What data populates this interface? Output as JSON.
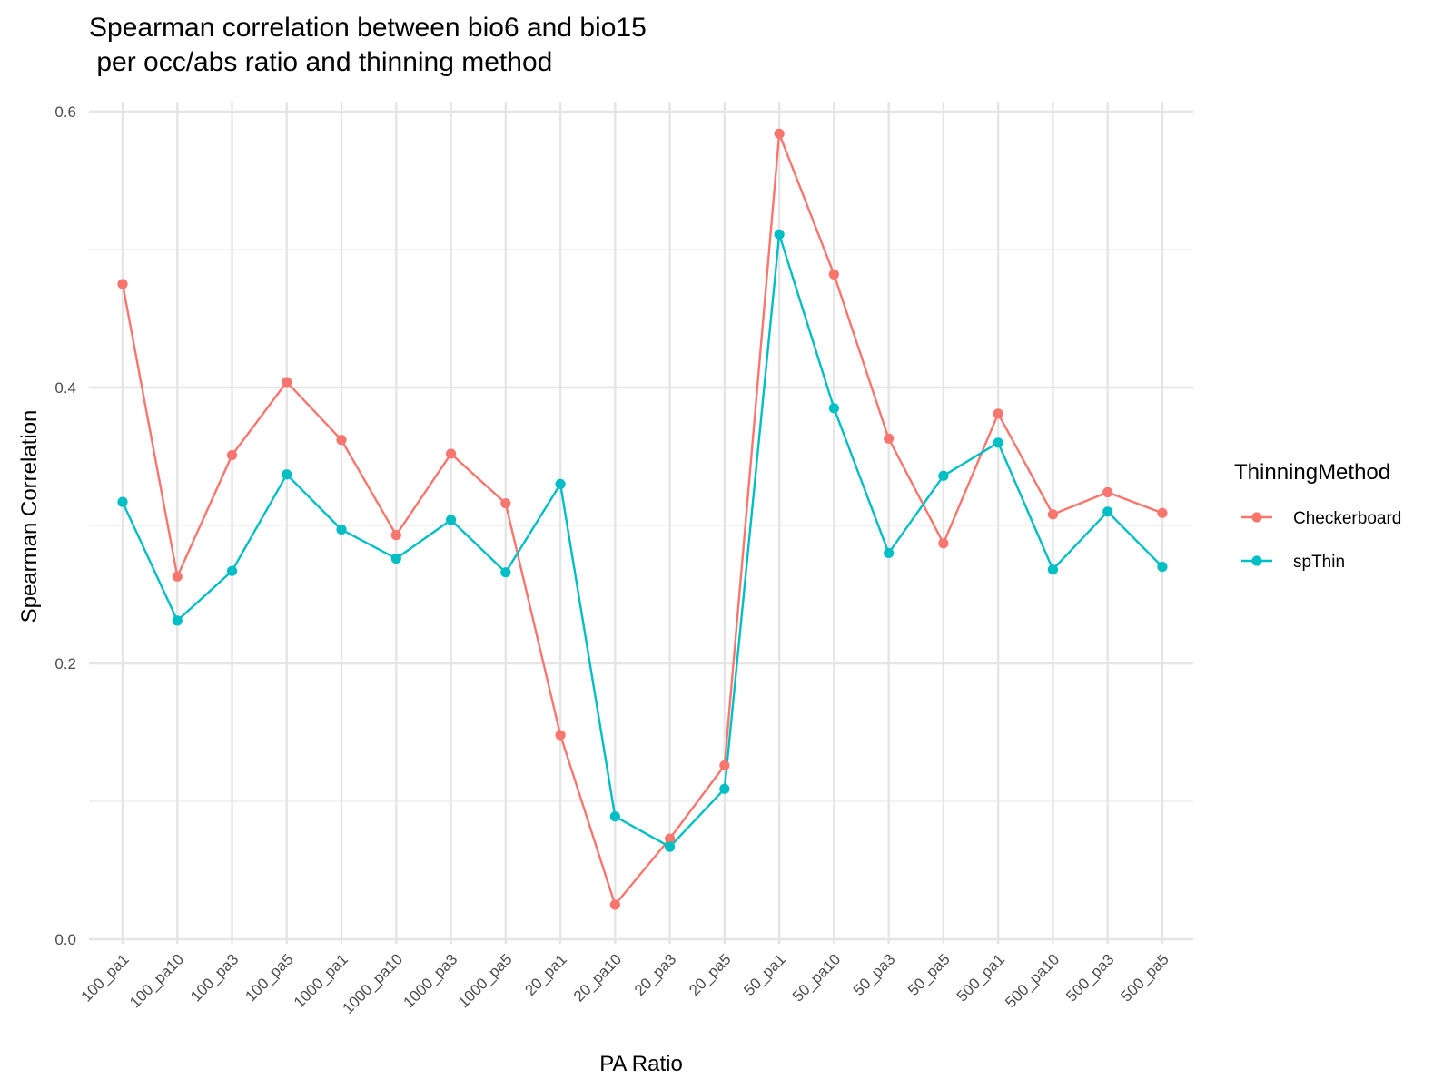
{
  "chart_data": {
    "type": "line",
    "title_line1": "Spearman correlation between bio6 and bio15",
    "title_line2": " per occ/abs ratio and thinning method",
    "xlabel": "PA Ratio",
    "ylabel": "Spearman Correlation",
    "ylim": [
      0,
      0.6
    ],
    "yticks": [
      "0.0",
      "0.2",
      "0.4",
      "0.6"
    ],
    "ytick_values": [
      0,
      0.2,
      0.4,
      0.6
    ],
    "grid": true,
    "legend_title": "ThinningMethod",
    "legend_position": "right",
    "categories": [
      "100_pa1",
      "100_pa10",
      "100_pa3",
      "100_pa5",
      "1000_pa1",
      "1000_pa10",
      "1000_pa3",
      "1000_pa5",
      "20_pa1",
      "20_pa10",
      "20_pa3",
      "20_pa5",
      "50_pa1",
      "50_pa10",
      "50_pa3",
      "50_pa5",
      "500_pa1",
      "500_pa10",
      "500_pa3",
      "500_pa5"
    ],
    "series": [
      {
        "name": "Checkerboard",
        "color": "#F8766D",
        "values": [
          0.475,
          0.263,
          0.351,
          0.404,
          0.362,
          0.293,
          0.352,
          0.316,
          0.148,
          0.025,
          0.073,
          0.126,
          0.584,
          0.482,
          0.363,
          0.287,
          0.381,
          0.308,
          0.324,
          0.309
        ]
      },
      {
        "name": "spThin",
        "color": "#00BFC4",
        "values": [
          0.317,
          0.231,
          0.267,
          0.337,
          0.297,
          0.276,
          0.304,
          0.266,
          0.33,
          0.089,
          0.067,
          0.109,
          0.511,
          0.385,
          0.28,
          0.336,
          0.36,
          0.268,
          0.31,
          0.27
        ]
      }
    ]
  }
}
